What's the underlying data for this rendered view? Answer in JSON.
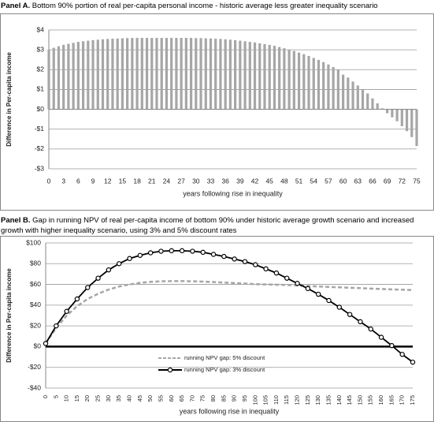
{
  "chart_data": [
    {
      "type": "bar",
      "panel": "Panel A.",
      "title": "Bottom 90% portion of real per-capita personal income - historic average less greater inequality scenario",
      "x": [
        0,
        1,
        2,
        3,
        4,
        5,
        6,
        7,
        8,
        9,
        10,
        11,
        12,
        13,
        14,
        15,
        16,
        17,
        18,
        19,
        20,
        21,
        22,
        23,
        24,
        25,
        26,
        27,
        28,
        29,
        30,
        31,
        32,
        33,
        34,
        35,
        36,
        37,
        38,
        39,
        40,
        41,
        42,
        43,
        44,
        45,
        46,
        47,
        48,
        49,
        50,
        51,
        52,
        53,
        54,
        55,
        56,
        57,
        58,
        59,
        60,
        61,
        62,
        63,
        64,
        65,
        66,
        67,
        68,
        69,
        70,
        71,
        72,
        73,
        74,
        75
      ],
      "values": [
        3.0,
        3.1,
        3.18,
        3.25,
        3.3,
        3.35,
        3.4,
        3.43,
        3.46,
        3.49,
        3.51,
        3.53,
        3.55,
        3.56,
        3.57,
        3.58,
        3.59,
        3.6,
        3.6,
        3.6,
        3.6,
        3.6,
        3.6,
        3.6,
        3.6,
        3.6,
        3.6,
        3.6,
        3.6,
        3.6,
        3.59,
        3.59,
        3.58,
        3.57,
        3.56,
        3.55,
        3.53,
        3.51,
        3.49,
        3.46,
        3.43,
        3.4,
        3.37,
        3.33,
        3.29,
        3.25,
        3.2,
        3.14,
        3.08,
        3.01,
        2.94,
        2.86,
        2.78,
        2.69,
        2.59,
        2.49,
        2.38,
        2.26,
        2.13,
        2.0,
        1.75,
        1.6,
        1.4,
        1.2,
        1.0,
        0.8,
        0.55,
        0.3,
        0.05,
        -0.2,
        -0.4,
        -0.6,
        -0.85,
        -1.1,
        -1.4,
        -1.85
      ],
      "color": "#a6a6a6",
      "xlim": [
        0,
        75
      ],
      "xticks": [
        0,
        3,
        6,
        9,
        12,
        15,
        18,
        21,
        24,
        27,
        30,
        33,
        36,
        39,
        42,
        45,
        48,
        51,
        54,
        57,
        60,
        63,
        66,
        69,
        72,
        75
      ],
      "ylim": [
        -3,
        4
      ],
      "yticks": [
        {
          "value": 4,
          "label": "$4"
        },
        {
          "value": 3,
          "label": "$3"
        },
        {
          "value": 2,
          "label": "$2"
        },
        {
          "value": 1,
          "label": "$1"
        },
        {
          "value": 0,
          "label": "$0"
        },
        {
          "value": -1,
          "label": "-$1"
        },
        {
          "value": -2,
          "label": "-$2"
        },
        {
          "value": -3,
          "label": "-$3"
        }
      ],
      "xlabel": "years following rise in inequality",
      "ylabel": "Difference in Per-capita income",
      "grid": true
    },
    {
      "type": "line",
      "panel": "Panel B.",
      "title": "Gap in running NPV of real per-capita income of bottom 90% under historic average growth scenario and increased growth with higher inequality scenario, using 3% and 5% discount rates",
      "x": [
        0,
        5,
        10,
        15,
        20,
        25,
        30,
        35,
        40,
        45,
        50,
        55,
        60,
        65,
        70,
        75,
        80,
        85,
        90,
        95,
        100,
        105,
        110,
        115,
        120,
        125,
        130,
        135,
        140,
        145,
        150,
        155,
        160,
        165,
        170,
        175
      ],
      "series": [
        {
          "name": "running NPV gap: 5% discount",
          "color": "#a6a6a6",
          "style": "dashed",
          "values": [
            3,
            18,
            30,
            39,
            46,
            51,
            55,
            58,
            60,
            61.5,
            62.5,
            63,
            63.2,
            63.2,
            63,
            62.7,
            62.3,
            61.8,
            61.3,
            60.8,
            60.3,
            60,
            59.7,
            59.4,
            59,
            58.5,
            58,
            57.6,
            57.2,
            56.8,
            56.4,
            56,
            55.6,
            55.2,
            54.9,
            54.6
          ]
        },
        {
          "name": "running NPV gap: 3% discount",
          "color": "#000000",
          "style": "markers",
          "values": [
            3,
            20,
            34,
            46,
            57,
            66,
            74,
            80,
            85,
            88,
            90.5,
            92,
            92.5,
            92.5,
            92,
            91,
            89,
            87,
            84.5,
            82,
            79,
            75,
            71,
            66,
            61,
            56,
            50.5,
            44.5,
            38,
            31,
            24,
            17,
            9,
            1,
            -7.5,
            -15
          ]
        }
      ],
      "xlim": [
        0,
        175
      ],
      "xticks": [
        0,
        5,
        10,
        15,
        20,
        25,
        30,
        35,
        40,
        45,
        50,
        55,
        60,
        65,
        70,
        75,
        80,
        85,
        90,
        95,
        100,
        105,
        110,
        115,
        120,
        125,
        130,
        135,
        140,
        145,
        150,
        155,
        160,
        165,
        170,
        175
      ],
      "ylim": [
        -40,
        100
      ],
      "yticks": [
        {
          "value": 100,
          "label": "$100"
        },
        {
          "value": 80,
          "label": "$80"
        },
        {
          "value": 60,
          "label": "$60"
        },
        {
          "value": 40,
          "label": "$40"
        },
        {
          "value": 20,
          "label": "$20"
        },
        {
          "value": 0,
          "label": "$0"
        },
        {
          "value": -20,
          "label": "-$20"
        },
        {
          "value": -40,
          "label": "-$40"
        }
      ],
      "xlabel": "years following rise in inequality",
      "ylabel": "Difference in Per-capita income",
      "grid": true,
      "legend": "lower center"
    }
  ]
}
